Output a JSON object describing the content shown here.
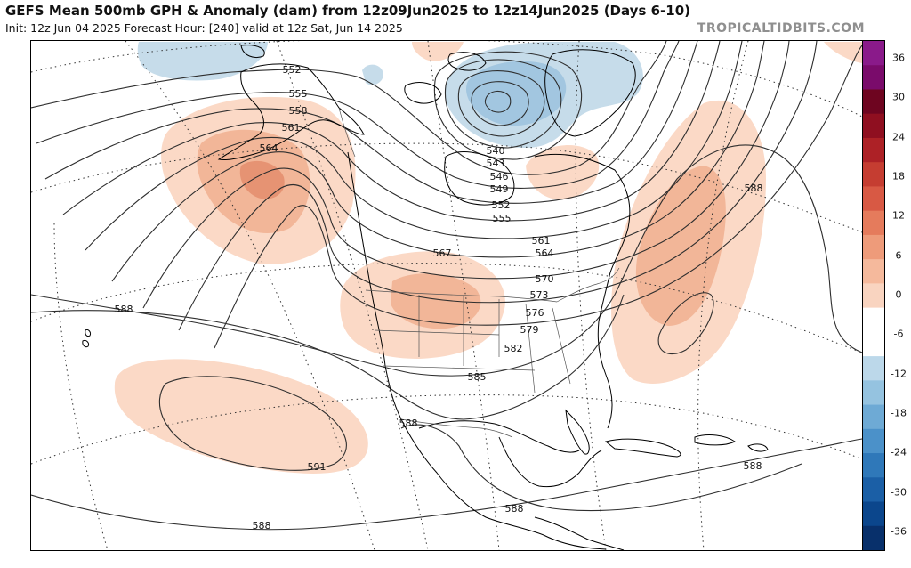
{
  "header": {
    "title": "GEFS Mean 500mb GPH & Anomaly (dam) from 12z09Jun2025 to 12z14Jun2025 (Days 6-10)",
    "subtitle": "Init: 12z Jun 04 2025   Forecast Hour: [240]   valid at 12z Sat, Jun 14 2025",
    "watermark": "TROPICALTIDBITS.COM"
  },
  "contour_labels": [
    {
      "text": "552"
    },
    {
      "text": "555"
    },
    {
      "text": "558"
    },
    {
      "text": "561"
    },
    {
      "text": "564"
    },
    {
      "text": "540"
    },
    {
      "text": "543"
    },
    {
      "text": "546"
    },
    {
      "text": "549"
    },
    {
      "text": "552"
    },
    {
      "text": "555"
    },
    {
      "text": "561"
    },
    {
      "text": "564"
    },
    {
      "text": "567"
    },
    {
      "text": "570"
    },
    {
      "text": "573"
    },
    {
      "text": "576"
    },
    {
      "text": "579"
    },
    {
      "text": "582"
    },
    {
      "text": "585"
    },
    {
      "text": "588"
    },
    {
      "text": "588"
    },
    {
      "text": "588"
    },
    {
      "text": "588"
    },
    {
      "text": "588"
    },
    {
      "text": "588"
    },
    {
      "text": "591"
    }
  ],
  "colorbar": {
    "units": "dam",
    "ticks": [
      "36",
      "30",
      "24",
      "18",
      "12",
      "6",
      "0",
      "-6",
      "-12",
      "-18",
      "-24",
      "-30",
      "-36"
    ],
    "colors": [
      "#08306b",
      "#0b468c",
      "#1b5fa6",
      "#2f78b9",
      "#4b91c9",
      "#6eaad5",
      "#95c3e0",
      "#bcd8ea",
      "#ffffff",
      "#ffffff",
      "#f9d4c0",
      "#f5b99c",
      "#ee9b7a",
      "#e57b5c",
      "#d85944",
      "#c53d31",
      "#ad2126",
      "#8f0f20",
      "#6e0520",
      "#7a0b6b",
      "#8a1a8a"
    ]
  },
  "map": {
    "anomaly_colors": {
      "pos6": "#fbd9c6",
      "pos12": "#f2b698",
      "pos18": "#e69373",
      "neg6": "#c6dcea",
      "neg12": "#a2c6e0"
    },
    "contour_color": "#2e2e2e",
    "coast_color": "#000000",
    "border_color": "#555555"
  }
}
